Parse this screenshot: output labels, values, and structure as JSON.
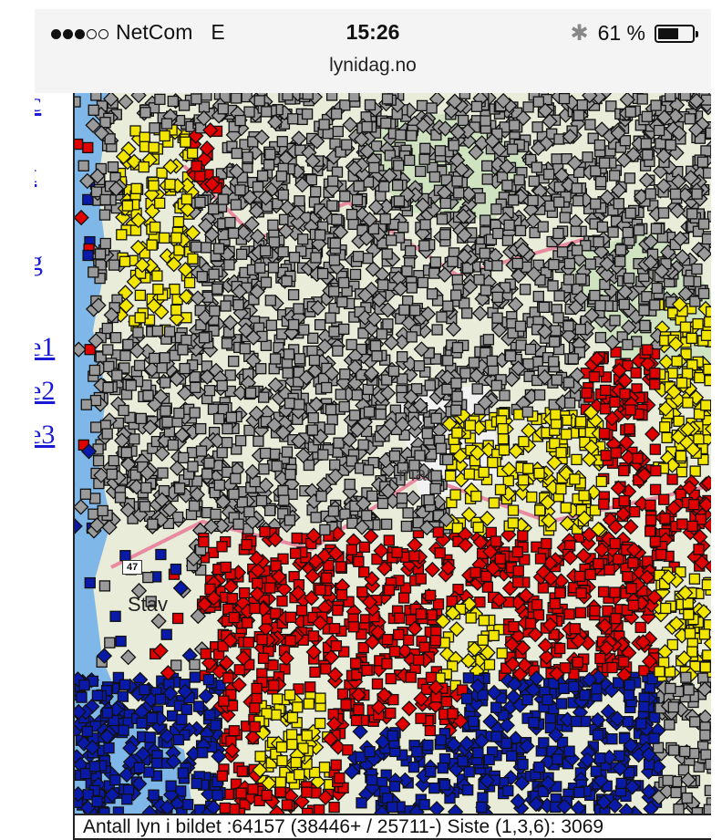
{
  "status_bar": {
    "signal_dots_filled": 3,
    "signal_dots_empty": 2,
    "carrier": "NetCom",
    "network": "E",
    "time": "15:26",
    "bluetooth_icon": "bluetooth-icon",
    "battery_percent": "61 %",
    "battery_level": 0.61
  },
  "browser": {
    "url": "lynidag.no"
  },
  "sidebar": {
    "links": [
      {
        "label": "c"
      },
      {
        "label": "t"
      },
      {
        "label": "g"
      },
      {
        "label": "e1"
      },
      {
        "label": "e2"
      },
      {
        "label": "e3"
      }
    ]
  },
  "map": {
    "place_labels": {
      "stav": "Stav",
      "road_47": "47",
      "ham": "mar"
    },
    "legend_colors": {
      "oldest": "#9a9a9a",
      "older": "#0a1aa8",
      "recent": "#e00000",
      "newest": "#f2e600"
    }
  },
  "status_line": {
    "text": "Antall lyn i bildet :64157  (38446+ / 25711-) Siste (1,3,6): 3069"
  }
}
